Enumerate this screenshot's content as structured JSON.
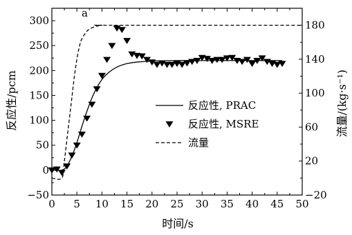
{
  "chart_data": {
    "type": "line",
    "panel_label": "a",
    "xlabel": "时间/s",
    "ylabel_left": "反应性/pcm",
    "ylabel_right": "流量/(kg·s⁻¹)",
    "xlim": [
      0,
      50
    ],
    "ylim_left": [
      -50,
      325
    ],
    "ylim_right": [
      -20,
      200
    ],
    "x_ticks": [
      0,
      5,
      10,
      15,
      20,
      25,
      30,
      35,
      40,
      45,
      50
    ],
    "y_ticks_left": [
      -50,
      0,
      50,
      100,
      150,
      200,
      250,
      300
    ],
    "y_ticks_right": [
      -20,
      20,
      60,
      100,
      140,
      180
    ],
    "grid": false,
    "legend_position": "center-right",
    "legend": [
      {
        "label": "反应性, PRAC",
        "style": "solid"
      },
      {
        "label": "反应性, MSRE",
        "style": "triangle-down"
      },
      {
        "label": "流量",
        "style": "dashed"
      }
    ],
    "series": [
      {
        "name": "反应性, PRAC",
        "axis": "left",
        "style": "solid",
        "x": [
          0,
          2,
          3,
          4,
          5,
          6,
          7,
          8,
          9,
          10,
          11,
          12,
          13,
          14,
          15,
          17,
          20,
          25,
          30,
          35,
          40,
          46
        ],
        "y": [
          0,
          0,
          8,
          28,
          55,
          88,
          118,
          145,
          166,
          182,
          193,
          201,
          207,
          211,
          214,
          217,
          219,
          220,
          220,
          220,
          220,
          220
        ]
      },
      {
        "name": "反应性, MSRE",
        "axis": "left",
        "style": "triangle-down",
        "x": [
          0,
          1,
          2,
          3,
          4,
          5,
          6,
          7,
          8,
          9,
          10,
          11,
          12,
          13,
          14,
          15,
          16,
          17,
          18,
          19,
          20,
          21,
          22,
          23,
          24,
          25,
          26,
          27,
          28,
          29,
          30,
          31,
          32,
          33,
          34,
          35,
          36,
          37,
          38,
          39,
          40,
          41,
          42,
          43,
          44,
          45,
          46
        ],
        "y": [
          0,
          2,
          -5,
          8,
          30,
          50,
          72,
          104,
          132,
          163,
          190,
          222,
          250,
          285,
          282,
          260,
          233,
          230,
          229,
          222,
          217,
          212,
          215,
          212,
          212,
          214,
          212,
          215,
          218,
          220,
          226,
          224,
          220,
          222,
          222,
          225,
          226,
          220,
          218,
          222,
          214,
          220,
          225,
          218,
          214,
          212,
          214
        ]
      },
      {
        "name": "流量",
        "axis": "right",
        "style": "dashed",
        "x": [
          0,
          2,
          2.5,
          3,
          3.5,
          4,
          4.5,
          5,
          5.5,
          6,
          7,
          8,
          9,
          10,
          12,
          50
        ],
        "y": [
          0,
          0,
          20,
          45,
          70,
          95,
          120,
          140,
          155,
          164,
          173,
          177,
          179,
          180,
          180,
          180
        ]
      }
    ]
  }
}
